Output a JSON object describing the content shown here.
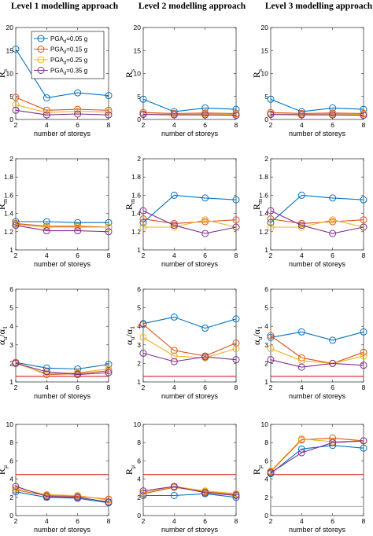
{
  "figure": {
    "column_titles": [
      "Level 1 modelling approach",
      "Level 2 modelling approach",
      "Level 3 modelling approach"
    ]
  },
  "legend": {
    "entries": [
      {
        "prefix": "PGA",
        "sub": "d",
        "suffix": "=0.05 g",
        "color": "#0072BD"
      },
      {
        "prefix": "PGA",
        "sub": "d",
        "suffix": "=0.15 g",
        "color": "#D95319"
      },
      {
        "prefix": "PGA",
        "sub": "d",
        "suffix": "=0.25 g",
        "color": "#EDB120"
      },
      {
        "prefix": "PGA",
        "sub": "d",
        "suffix": "=0.35 g",
        "color": "#7E2F8E"
      }
    ]
  },
  "chart_data": [
    {
      "type": "line",
      "panel": "Rs-L1",
      "title": "",
      "xlabel": "number of storeys",
      "ylabel": {
        "main": "R",
        "sub": "s"
      },
      "x": [
        2,
        4,
        6,
        8
      ],
      "xlim": [
        2,
        8
      ],
      "ylim": [
        0,
        20
      ],
      "yticks": [
        0,
        5,
        10,
        15,
        20
      ],
      "series": [
        {
          "name": "PGAd=0.05 g",
          "values": [
            15.3,
            4.7,
            5.8,
            5.2
          ]
        },
        {
          "name": "PGAd=0.15 g",
          "values": [
            4.8,
            2.0,
            2.2,
            2.0
          ]
        },
        {
          "name": "PGAd=0.25 g",
          "values": [
            3.2,
            1.5,
            1.8,
            1.6
          ]
        },
        {
          "name": "PGAd=0.35 g",
          "values": [
            2.0,
            1.0,
            1.2,
            1.0
          ]
        }
      ],
      "reference_lines": []
    },
    {
      "type": "line",
      "panel": "Rs-L2",
      "title": "",
      "xlabel": "number of storeys",
      "ylabel": {
        "main": "R",
        "sub": "s"
      },
      "x": [
        2,
        4,
        6,
        8
      ],
      "xlim": [
        2,
        8
      ],
      "ylim": [
        0,
        20
      ],
      "yticks": [
        0,
        5,
        10,
        15,
        20
      ],
      "series": [
        {
          "name": "PGAd=0.05 g",
          "values": [
            4.4,
            1.7,
            2.5,
            2.2
          ]
        },
        {
          "name": "PGAd=0.15 g",
          "values": [
            1.5,
            1.3,
            1.4,
            1.3
          ]
        },
        {
          "name": "PGAd=0.25 g",
          "values": [
            1.2,
            1.1,
            1.2,
            1.1
          ]
        },
        {
          "name": "PGAd=0.35 g",
          "values": [
            1.1,
            1.0,
            1.0,
            0.9
          ]
        }
      ],
      "reference_lines": []
    },
    {
      "type": "line",
      "panel": "Rs-L3",
      "title": "",
      "xlabel": "number of storeys",
      "ylabel": {
        "main": "R",
        "sub": "s"
      },
      "x": [
        2,
        4,
        6,
        8
      ],
      "xlim": [
        2,
        8
      ],
      "ylim": [
        0,
        20
      ],
      "yticks": [
        0,
        5,
        10,
        15,
        20
      ],
      "series": [
        {
          "name": "PGAd=0.05 g",
          "values": [
            4.4,
            1.7,
            2.5,
            2.2
          ]
        },
        {
          "name": "PGAd=0.15 g",
          "values": [
            1.5,
            1.3,
            1.4,
            1.3
          ]
        },
        {
          "name": "PGAd=0.25 g",
          "values": [
            1.2,
            1.1,
            1.2,
            1.1
          ]
        },
        {
          "name": "PGAd=0.35 g",
          "values": [
            1.1,
            1.0,
            1.0,
            0.9
          ]
        }
      ],
      "reference_lines": []
    },
    {
      "type": "line",
      "panel": "Rm-L1",
      "title": "",
      "xlabel": "number of storeys",
      "ylabel": {
        "main": "R",
        "sub": "m"
      },
      "x": [
        2,
        4,
        6,
        8
      ],
      "xlim": [
        2,
        8
      ],
      "ylim": [
        1,
        2
      ],
      "yticks": [
        1,
        1.2,
        1.4,
        1.6,
        1.8,
        2
      ],
      "series": [
        {
          "name": "PGAd=0.05 g",
          "values": [
            1.31,
            1.31,
            1.3,
            1.3
          ]
        },
        {
          "name": "PGAd=0.15 g",
          "values": [
            1.29,
            1.26,
            1.26,
            1.25
          ]
        },
        {
          "name": "PGAd=0.25 g",
          "values": [
            1.28,
            1.25,
            1.25,
            1.25
          ]
        },
        {
          "name": "PGAd=0.35 g",
          "values": [
            1.27,
            1.21,
            1.21,
            1.2
          ]
        }
      ],
      "reference_lines": []
    },
    {
      "type": "line",
      "panel": "Rm-L2",
      "title": "",
      "xlabel": "number of storeys",
      "ylabel": {
        "main": "R",
        "sub": "m"
      },
      "x": [
        2,
        4,
        6,
        8
      ],
      "xlim": [
        2,
        8
      ],
      "ylim": [
        1,
        2
      ],
      "yticks": [
        1,
        1.2,
        1.4,
        1.6,
        1.8,
        2
      ],
      "series": [
        {
          "name": "PGAd=0.05 g",
          "values": [
            1.3,
            1.6,
            1.57,
            1.55
          ]
        },
        {
          "name": "PGAd=0.15 g",
          "values": [
            1.34,
            1.29,
            1.31,
            1.33
          ]
        },
        {
          "name": "PGAd=0.25 g",
          "values": [
            1.25,
            1.25,
            1.33,
            1.25
          ]
        },
        {
          "name": "PGAd=0.35 g",
          "values": [
            1.43,
            1.27,
            1.18,
            1.25
          ]
        }
      ],
      "reference_lines": []
    },
    {
      "type": "line",
      "panel": "Rm-L3",
      "title": "",
      "xlabel": "number of storeys",
      "ylabel": {
        "main": "R",
        "sub": "m"
      },
      "x": [
        2,
        4,
        6,
        8
      ],
      "xlim": [
        2,
        8
      ],
      "ylim": [
        1,
        2
      ],
      "yticks": [
        1,
        1.2,
        1.4,
        1.6,
        1.8,
        2
      ],
      "series": [
        {
          "name": "PGAd=0.05 g",
          "values": [
            1.3,
            1.6,
            1.57,
            1.55
          ]
        },
        {
          "name": "PGAd=0.15 g",
          "values": [
            1.34,
            1.29,
            1.31,
            1.33
          ]
        },
        {
          "name": "PGAd=0.25 g",
          "values": [
            1.25,
            1.25,
            1.33,
            1.25
          ]
        },
        {
          "name": "PGAd=0.35 g",
          "values": [
            1.43,
            1.27,
            1.18,
            1.25
          ]
        }
      ],
      "reference_lines": []
    },
    {
      "type": "line",
      "panel": "au-a1-L1",
      "title": "",
      "xlabel": "number of storeys",
      "ylabel": {
        "main": "α",
        "sub": "u",
        "main2": "/α",
        "sub2": "1"
      },
      "x": [
        2,
        4,
        6,
        8
      ],
      "xlim": [
        2,
        8
      ],
      "ylim": [
        1,
        6
      ],
      "yticks": [
        1,
        2,
        3,
        4,
        5,
        6
      ],
      "series": [
        {
          "name": "PGAd=0.05 g",
          "values": [
            2.05,
            1.75,
            1.7,
            1.95
          ]
        },
        {
          "name": "PGAd=0.15 g",
          "values": [
            2.05,
            1.4,
            1.45,
            1.6
          ]
        },
        {
          "name": "PGAd=0.25 g",
          "values": [
            2.0,
            1.45,
            1.5,
            1.7
          ]
        },
        {
          "name": "PGAd=0.35 g",
          "values": [
            2.0,
            1.55,
            1.4,
            1.5
          ]
        }
      ],
      "reference_lines": [
        {
          "value": 1.3,
          "color": "#D00000"
        }
      ]
    },
    {
      "type": "line",
      "panel": "au-a1-L2",
      "title": "",
      "xlabel": "number of storeys",
      "ylabel": {
        "main": "α",
        "sub": "u",
        "main2": "/α",
        "sub2": "1"
      },
      "x": [
        2,
        4,
        6,
        8
      ],
      "xlim": [
        2,
        8
      ],
      "ylim": [
        1,
        6
      ],
      "yticks": [
        1,
        2,
        3,
        4,
        5,
        6
      ],
      "series": [
        {
          "name": "PGAd=0.05 g",
          "values": [
            4.15,
            4.5,
            3.9,
            4.4
          ]
        },
        {
          "name": "PGAd=0.15 g",
          "values": [
            4.1,
            2.7,
            2.4,
            3.1
          ]
        },
        {
          "name": "PGAd=0.25 g",
          "values": [
            3.4,
            2.4,
            2.3,
            2.8
          ]
        },
        {
          "name": "PGAd=0.35 g",
          "values": [
            2.55,
            2.1,
            2.35,
            2.2
          ]
        }
      ],
      "reference_lines": [
        {
          "value": 1.3,
          "color": "#D00000"
        }
      ]
    },
    {
      "type": "line",
      "panel": "au-a1-L3",
      "title": "",
      "xlabel": "number of storeys",
      "ylabel": {
        "main": "α",
        "sub": "u",
        "main2": "/α",
        "sub2": "1"
      },
      "x": [
        2,
        4,
        6,
        8
      ],
      "xlim": [
        2,
        8
      ],
      "ylim": [
        1,
        6
      ],
      "yticks": [
        1,
        2,
        3,
        4,
        5,
        6
      ],
      "series": [
        {
          "name": "PGAd=0.05 g",
          "values": [
            3.4,
            3.7,
            3.25,
            3.7
          ]
        },
        {
          "name": "PGAd=0.15 g",
          "values": [
            3.5,
            2.3,
            2.0,
            2.6
          ]
        },
        {
          "name": "PGAd=0.25 g",
          "values": [
            2.8,
            2.15,
            2.0,
            2.4
          ]
        },
        {
          "name": "PGAd=0.35 g",
          "values": [
            2.2,
            1.8,
            2.0,
            1.9
          ]
        }
      ],
      "reference_lines": [
        {
          "value": 1.3,
          "color": "#D00000"
        }
      ]
    },
    {
      "type": "line",
      "panel": "Rmu-L1",
      "title": "",
      "xlabel": "number of storeys",
      "ylabel": {
        "main": "R",
        "sub": "μ"
      },
      "x": [
        2,
        4,
        6,
        8
      ],
      "xlim": [
        2,
        8
      ],
      "ylim": [
        0,
        10
      ],
      "yticks": [
        0,
        2,
        4,
        6,
        8,
        10
      ],
      "series": [
        {
          "name": "PGAd=0.05 g",
          "values": [
            2.6,
            2.0,
            1.9,
            1.4
          ]
        },
        {
          "name": "PGAd=0.15 g",
          "values": [
            2.8,
            2.2,
            2.1,
            1.8
          ]
        },
        {
          "name": "PGAd=0.25 g",
          "values": [
            3.0,
            2.3,
            2.2,
            1.7
          ]
        },
        {
          "name": "PGAd=0.35 g",
          "values": [
            3.2,
            2.1,
            2.0,
            1.5
          ]
        }
      ],
      "reference_lines": [
        {
          "value": 4.5,
          "color": "#D00000"
        },
        {
          "value": 1.0,
          "color": "#B0B0B0"
        }
      ]
    },
    {
      "type": "line",
      "panel": "Rmu-L2",
      "title": "",
      "xlabel": "number of storeys",
      "ylabel": {
        "main": "R",
        "sub": "μ"
      },
      "x": [
        2,
        4,
        6,
        8
      ],
      "xlim": [
        2,
        8
      ],
      "ylim": [
        0,
        10
      ],
      "yticks": [
        0,
        2,
        4,
        6,
        8,
        10
      ],
      "series": [
        {
          "name": "PGAd=0.05 g",
          "values": [
            2.2,
            2.2,
            2.4,
            2.0
          ]
        },
        {
          "name": "PGAd=0.15 g",
          "values": [
            2.4,
            3.1,
            2.6,
            2.3
          ]
        },
        {
          "name": "PGAd=0.25 g",
          "values": [
            2.5,
            3.2,
            2.7,
            2.4
          ]
        },
        {
          "name": "PGAd=0.35 g",
          "values": [
            2.7,
            3.2,
            2.5,
            2.2
          ]
        }
      ],
      "reference_lines": [
        {
          "value": 4.5,
          "color": "#D00000"
        },
        {
          "value": 1.0,
          "color": "#B0B0B0"
        }
      ]
    },
    {
      "type": "line",
      "panel": "Rmu-L3",
      "title": "",
      "xlabel": "number of storeys",
      "ylabel": {
        "main": "R",
        "sub": "μ"
      },
      "x": [
        2,
        4,
        6,
        8
      ],
      "xlim": [
        2,
        8
      ],
      "ylim": [
        0,
        10
      ],
      "yticks": [
        0,
        2,
        4,
        6,
        8,
        10
      ],
      "series": [
        {
          "name": "PGAd=0.05 g",
          "values": [
            4.6,
            7.3,
            7.7,
            7.4
          ]
        },
        {
          "name": "PGAd=0.15 g",
          "values": [
            4.8,
            8.3,
            8.5,
            8.2
          ]
        },
        {
          "name": "PGAd=0.25 g",
          "values": [
            4.9,
            8.4,
            8.1,
            8.2
          ]
        },
        {
          "name": "PGAd=0.35 g",
          "values": [
            4.7,
            6.9,
            8.0,
            8.2
          ]
        }
      ],
      "reference_lines": [
        {
          "value": 4.5,
          "color": "#D00000"
        },
        {
          "value": 1.0,
          "color": "#B0B0B0"
        }
      ]
    }
  ]
}
